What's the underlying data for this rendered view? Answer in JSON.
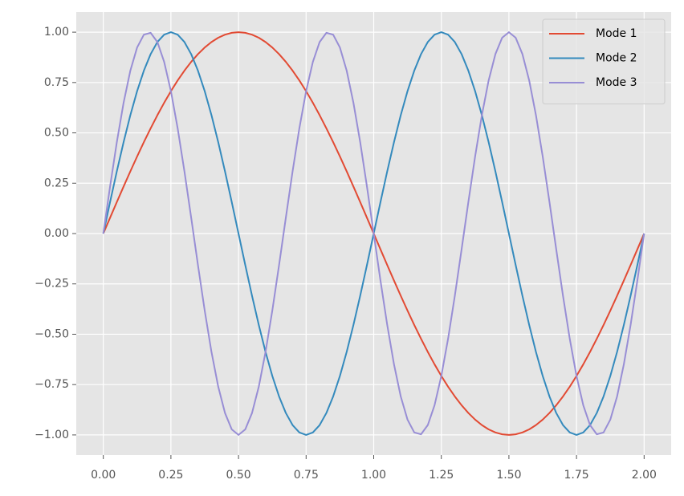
{
  "chart_data": {
    "type": "line",
    "x": [
      0,
      0.025,
      0.05,
      0.075,
      0.1,
      0.125,
      0.15,
      0.175,
      0.2,
      0.225,
      0.25,
      0.275,
      0.3,
      0.325,
      0.35,
      0.375,
      0.4,
      0.425,
      0.45,
      0.475,
      0.5,
      0.525,
      0.55,
      0.575,
      0.6,
      0.625,
      0.65,
      0.675,
      0.7,
      0.725,
      0.75,
      0.775,
      0.8,
      0.825,
      0.85,
      0.875,
      0.9,
      0.925,
      0.95,
      0.975,
      1,
      1.025,
      1.05,
      1.075,
      1.1,
      1.125,
      1.15,
      1.175,
      1.2,
      1.225,
      1.25,
      1.275,
      1.3,
      1.325,
      1.35,
      1.375,
      1.4,
      1.425,
      1.45,
      1.475,
      1.5,
      1.525,
      1.55,
      1.575,
      1.6,
      1.625,
      1.65,
      1.675,
      1.7,
      1.725,
      1.75,
      1.775,
      1.8,
      1.825,
      1.85,
      1.875,
      1.9,
      1.925,
      1.95,
      1.975,
      2
    ],
    "series": [
      {
        "name": "Mode 1",
        "color": "#E24A33",
        "values": [
          0,
          0.0785,
          0.1564,
          0.2334,
          0.309,
          0.3827,
          0.454,
          0.5225,
          0.5878,
          0.6494,
          0.7071,
          0.7604,
          0.809,
          0.8526,
          0.891,
          0.9239,
          0.9511,
          0.9724,
          0.9877,
          0.9969,
          1,
          0.9969,
          0.9877,
          0.9724,
          0.9511,
          0.9239,
          0.891,
          0.8526,
          0.809,
          0.7604,
          0.7071,
          0.6494,
          0.5878,
          0.5225,
          0.454,
          0.3827,
          0.309,
          0.2334,
          0.1564,
          0.0785,
          0,
          -0.0785,
          -0.1564,
          -0.2334,
          -0.309,
          -0.3827,
          -0.454,
          -0.5225,
          -0.5878,
          -0.6494,
          -0.7071,
          -0.7604,
          -0.809,
          -0.8526,
          -0.891,
          -0.9239,
          -0.9511,
          -0.9724,
          -0.9877,
          -0.9969,
          -1,
          -0.9969,
          -0.9877,
          -0.9724,
          -0.9511,
          -0.9239,
          -0.891,
          -0.8526,
          -0.809,
          -0.7604,
          -0.7071,
          -0.6494,
          -0.5878,
          -0.5225,
          -0.454,
          -0.3827,
          -0.309,
          -0.2334,
          -0.1564,
          -0.0785,
          0
        ]
      },
      {
        "name": "Mode 2",
        "color": "#348ABD",
        "values": [
          0,
          0.1564,
          0.309,
          0.454,
          0.5878,
          0.7071,
          0.809,
          0.891,
          0.9511,
          0.9877,
          1,
          0.9877,
          0.9511,
          0.891,
          0.809,
          0.7071,
          0.5878,
          0.454,
          0.309,
          0.1564,
          0,
          -0.1564,
          -0.309,
          -0.454,
          -0.5878,
          -0.7071,
          -0.809,
          -0.891,
          -0.9511,
          -0.9877,
          -1,
          -0.9877,
          -0.9511,
          -0.891,
          -0.809,
          -0.7071,
          -0.5878,
          -0.454,
          -0.309,
          -0.1564,
          0,
          0.1564,
          0.309,
          0.454,
          0.5878,
          0.7071,
          0.809,
          0.891,
          0.9511,
          0.9877,
          1,
          0.9877,
          0.9511,
          0.891,
          0.809,
          0.7071,
          0.5878,
          0.454,
          0.309,
          0.1564,
          0,
          -0.1564,
          -0.309,
          -0.454,
          -0.5878,
          -0.7071,
          -0.809,
          -0.891,
          -0.9511,
          -0.9877,
          -1,
          -0.9877,
          -0.9511,
          -0.891,
          -0.809,
          -0.7071,
          -0.5878,
          -0.454,
          -0.309,
          -0.1564,
          0
        ]
      },
      {
        "name": "Mode 3",
        "color": "#988ED5",
        "values": [
          0,
          0.2334,
          0.454,
          0.6494,
          0.809,
          0.9239,
          0.9877,
          0.9969,
          0.9511,
          0.8526,
          0.7071,
          0.5225,
          0.309,
          0.0785,
          -0.1564,
          -0.3827,
          -0.5878,
          -0.7604,
          -0.891,
          -0.9724,
          -1,
          -0.9724,
          -0.891,
          -0.7604,
          -0.5878,
          -0.3827,
          -0.1564,
          0.0785,
          0.309,
          0.5225,
          0.7071,
          0.8526,
          0.9511,
          0.9969,
          0.9877,
          0.9239,
          0.809,
          0.6494,
          0.454,
          0.2334,
          0,
          -0.2334,
          -0.454,
          -0.6494,
          -0.809,
          -0.9239,
          -0.9877,
          -0.9969,
          -0.9511,
          -0.8526,
          -0.7071,
          -0.5225,
          -0.309,
          -0.0785,
          0.1564,
          0.3827,
          0.5878,
          0.7604,
          0.891,
          0.9724,
          1,
          0.9724,
          0.891,
          0.7604,
          0.5878,
          0.3827,
          0.1564,
          -0.0785,
          -0.309,
          -0.5225,
          -0.7071,
          -0.8526,
          -0.9511,
          -0.9969,
          -0.9877,
          -0.9239,
          -0.809,
          -0.6494,
          -0.454,
          -0.2334,
          0
        ]
      }
    ],
    "xlim": [
      -0.1,
      2.1
    ],
    "ylim": [
      -1.1,
      1.1
    ],
    "xticks": [
      {
        "value": 0,
        "label": "0.00"
      },
      {
        "value": 0.25,
        "label": "0.25"
      },
      {
        "value": 0.5,
        "label": "0.50"
      },
      {
        "value": 0.75,
        "label": "0.75"
      },
      {
        "value": 1,
        "label": "1.00"
      },
      {
        "value": 1.25,
        "label": "1.25"
      },
      {
        "value": 1.5,
        "label": "1.50"
      },
      {
        "value": 1.75,
        "label": "1.75"
      },
      {
        "value": 2,
        "label": "2.00"
      }
    ],
    "yticks": [
      {
        "value": -1,
        "label": "−1.00"
      },
      {
        "value": -0.75,
        "label": "−0.75"
      },
      {
        "value": -0.5,
        "label": "−0.50"
      },
      {
        "value": -0.25,
        "label": "−0.25"
      },
      {
        "value": 0,
        "label": "0.00"
      },
      {
        "value": 0.25,
        "label": "0.25"
      },
      {
        "value": 0.5,
        "label": "0.50"
      },
      {
        "value": 0.75,
        "label": "0.75"
      },
      {
        "value": 1,
        "label": "1.00"
      }
    ],
    "grid": true,
    "legend": "upper right"
  }
}
